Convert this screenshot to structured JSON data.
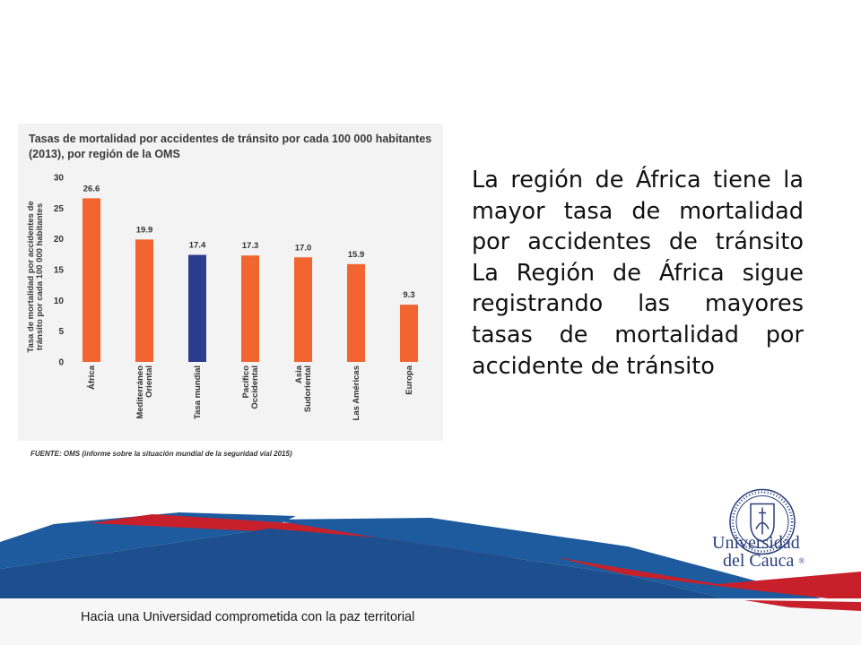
{
  "chart_data": {
    "type": "bar",
    "title": "Tasas de mortalidad por accidentes de tránsito por cada 100 000 habitantes (2013), por región de la OMS",
    "ylabel": "Tasa de mortalidad por accidentes de tránsito por cada 100 000 habitantes",
    "xlabel": "",
    "categories": [
      "África",
      "Mediterráneo Oriental",
      "Tasa mundial",
      "Pacífico Occidental",
      "Asia Sudoriental",
      "Las Américas",
      "Europa"
    ],
    "category_lines": [
      [
        "África"
      ],
      [
        "Mediterráneo",
        "Oriental"
      ],
      [
        "Tasa mundial"
      ],
      [
        "Pacífico",
        "Occidental"
      ],
      [
        "Asia",
        "Sudoriental"
      ],
      [
        "Las Américas"
      ],
      [
        "Europa"
      ]
    ],
    "values": [
      26.6,
      19.9,
      17.4,
      17.3,
      17.0,
      15.9,
      9.3
    ],
    "value_labels": [
      "26.6",
      "19.9",
      "17.4",
      "17.3",
      "17.0",
      "15.9",
      "9.3"
    ],
    "ylim": [
      0,
      30
    ],
    "yticks": [
      0,
      5,
      10,
      15,
      20,
      25,
      30
    ],
    "bar_colors": [
      "#f26430",
      "#f26430",
      "#2a3c8e",
      "#f26430",
      "#f26430",
      "#f26430",
      "#f26430"
    ],
    "grid": false,
    "legend": "none"
  },
  "chart_title_lines": [
    "Tasas de mortalidad por accidentes de tránsito por cada 100 000 habitantes",
    "(2013), por región de la OMS"
  ],
  "ylabel_lines": [
    "Tasa de mortalidad por accidentes de",
    "tránsito por cada 100 000 habitantes"
  ],
  "source": "FUENTE: OMS (informe sobre la situación mundial de la seguridad vial 2015)",
  "side_text": "La región de África tiene la mayor tasa de mortalidad por accidentes de tránsito La Región de África sigue registrando las mayores tasas de mortalidad por accidente de tránsito",
  "footer": "Hacia una Universidad comprometida con la paz territorial",
  "logo": {
    "name_line1": "Universidad",
    "name_line2": "del Cauca",
    "mark": "®",
    "icon": "university-seal-icon"
  },
  "colors": {
    "orange": "#f26430",
    "blue": "#2a3c8e",
    "ribbon_red": "#c8202b",
    "ribbon_blue": "#1d5a9e",
    "logo_blue": "#2a3f7a"
  }
}
